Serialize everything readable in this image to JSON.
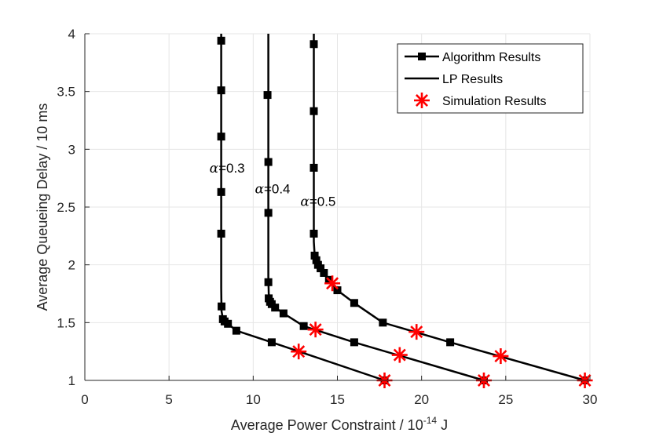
{
  "chart_data": {
    "type": "line",
    "title": "",
    "xlabel": "Average Power Constraint / 10",
    "xlabel_sup": "-14",
    "xlabel_unit": " J",
    "ylabel": "Average Queueing Delay / 10 ms",
    "xlim": [
      0,
      30
    ],
    "ylim": [
      1,
      4
    ],
    "xticks": [
      0,
      5,
      10,
      15,
      20,
      25,
      30
    ],
    "yticks": [
      1,
      1.5,
      2,
      2.5,
      3,
      3.5,
      4
    ],
    "ytick_labels": [
      "1",
      "1.5",
      "2",
      "2.5",
      "3",
      "3.5",
      "4"
    ],
    "grid": true,
    "legend_position": "top-right",
    "legend": [
      {
        "label": "Algorithm Results",
        "style": "line-square"
      },
      {
        "label": "LP Results",
        "style": "line"
      },
      {
        "label": "Simulation Results",
        "style": "asterisk"
      }
    ],
    "series": [
      {
        "name": "α=0.3",
        "alpha_symbol": "α",
        "alpha_value": "=0.3",
        "line": [
          [
            8.1,
            4.0
          ],
          [
            8.1,
            2.3
          ],
          [
            8.1,
            1.8
          ],
          [
            8.12,
            1.6
          ],
          [
            8.2,
            1.53
          ],
          [
            8.5,
            1.49
          ],
          [
            9.0,
            1.43
          ],
          [
            11.1,
            1.33
          ],
          [
            17.8,
            1.0
          ]
        ],
        "markers": [
          [
            8.1,
            3.94
          ],
          [
            8.1,
            3.51
          ],
          [
            8.1,
            3.11
          ],
          [
            8.1,
            2.63
          ],
          [
            8.1,
            2.27
          ],
          [
            8.12,
            1.64
          ],
          [
            8.2,
            1.53
          ],
          [
            8.3,
            1.51
          ],
          [
            8.5,
            1.49
          ],
          [
            9.0,
            1.43
          ],
          [
            11.1,
            1.33
          ],
          [
            17.8,
            1.0
          ]
        ],
        "simulation": [
          [
            12.7,
            1.25
          ],
          [
            17.8,
            1.0
          ]
        ]
      },
      {
        "name": "α=0.4",
        "alpha_symbol": "α",
        "alpha_value": "=0.4",
        "line": [
          [
            10.9,
            4.0
          ],
          [
            10.9,
            2.5
          ],
          [
            10.9,
            1.9
          ],
          [
            10.92,
            1.75
          ],
          [
            11.0,
            1.7
          ],
          [
            11.1,
            1.67
          ],
          [
            11.3,
            1.63
          ],
          [
            11.8,
            1.58
          ],
          [
            13.0,
            1.47
          ],
          [
            16.0,
            1.33
          ],
          [
            23.7,
            1.0
          ]
        ],
        "markers": [
          [
            10.85,
            3.47
          ],
          [
            10.9,
            2.89
          ],
          [
            10.9,
            2.45
          ],
          [
            10.9,
            1.85
          ],
          [
            10.92,
            1.71
          ],
          [
            11.0,
            1.68
          ],
          [
            11.1,
            1.66
          ],
          [
            11.3,
            1.63
          ],
          [
            11.8,
            1.58
          ],
          [
            13.0,
            1.47
          ],
          [
            16.0,
            1.33
          ],
          [
            23.7,
            1.0
          ]
        ],
        "simulation": [
          [
            13.7,
            1.44
          ],
          [
            18.7,
            1.22
          ],
          [
            23.7,
            1.0
          ]
        ]
      },
      {
        "name": "α=0.5",
        "alpha_symbol": "α",
        "alpha_value": "=0.5",
        "line": [
          [
            13.6,
            4.0
          ],
          [
            13.6,
            2.5
          ],
          [
            13.6,
            2.2
          ],
          [
            13.65,
            2.08
          ],
          [
            13.75,
            2.03
          ],
          [
            13.9,
            1.99
          ],
          [
            14.1,
            1.94
          ],
          [
            14.5,
            1.87
          ],
          [
            15.0,
            1.78
          ],
          [
            16.0,
            1.67
          ],
          [
            17.7,
            1.5
          ],
          [
            21.7,
            1.33
          ],
          [
            29.7,
            1.0
          ]
        ],
        "markers": [
          [
            13.6,
            3.91
          ],
          [
            13.6,
            3.33
          ],
          [
            13.6,
            2.84
          ],
          [
            13.6,
            2.27
          ],
          [
            13.65,
            2.08
          ],
          [
            13.75,
            2.04
          ],
          [
            13.85,
            2.0
          ],
          [
            14.0,
            1.97
          ],
          [
            14.2,
            1.93
          ],
          [
            14.5,
            1.87
          ],
          [
            15.0,
            1.78
          ],
          [
            16.0,
            1.67
          ],
          [
            17.7,
            1.5
          ],
          [
            21.7,
            1.33
          ],
          [
            29.7,
            1.0
          ]
        ],
        "simulation": [
          [
            14.7,
            1.84
          ],
          [
            19.7,
            1.42
          ],
          [
            24.7,
            1.21
          ],
          [
            29.7,
            1.0
          ]
        ]
      }
    ],
    "annotations": [
      {
        "series": 0,
        "x": 7.4,
        "y": 2.8
      },
      {
        "series": 1,
        "x": 10.1,
        "y": 2.62
      },
      {
        "series": 2,
        "x": 12.8,
        "y": 2.51
      }
    ]
  },
  "colors": {
    "line": "#000000",
    "simulation": "#ff0000",
    "grid": "#e6e6e6",
    "axis": "#262626"
  }
}
